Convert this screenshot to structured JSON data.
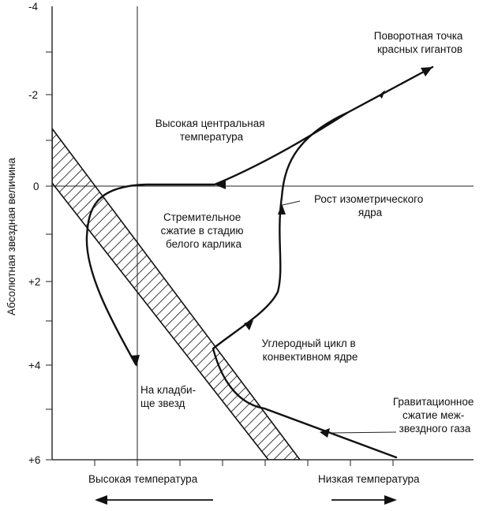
{
  "y_axis": {
    "title": "Абсолютная звездная величина",
    "ticks": [
      "-4",
      "-2",
      "0",
      "+2",
      "+4",
      "+6"
    ]
  },
  "x_axis": {
    "left_label": "Высокая температура",
    "right_label": "Низкая температура"
  },
  "annotations": {
    "red_giant_turnoff": [
      "Поворотная точка",
      "красных гигантов"
    ],
    "high_central_temp": [
      "Высокая центральная",
      "температура"
    ],
    "isothermal_core_growth": [
      "Рост изометрического",
      "ядра"
    ],
    "rapid_contraction": [
      "Стремительное",
      "сжатие в стадию",
      "белого карлика"
    ],
    "carbon_cycle": [
      "Углеродный цикл в",
      "конвективном ядре"
    ],
    "star_graveyard": [
      "На кладби-",
      "ще звезд"
    ],
    "gravitational_contraction": [
      "Гравитационное",
      "сжатие меж-",
      "звездного газа"
    ]
  },
  "colors": {
    "ink": "#111111",
    "background": "#ffffff"
  }
}
